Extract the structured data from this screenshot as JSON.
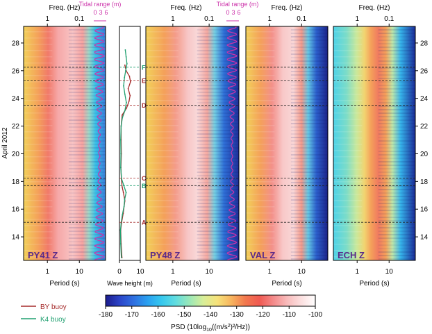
{
  "chart_data": [
    {
      "type": "heatmap",
      "panel_label": "PY41 Z",
      "xlabel": "Period (s)",
      "top_xlabel": "Freq. (Hz)",
      "x_ticks": [
        "1",
        "10"
      ],
      "top_x_ticks": [
        "1",
        "0.1"
      ],
      "overlay_title": "Tidal range (m)",
      "overlay_ticks": [
        "0",
        "3",
        "6"
      ]
    },
    {
      "type": "line",
      "xlabel": "Wave height (m)",
      "x_ticks": [
        "0",
        "10"
      ],
      "xlim": [
        0,
        10
      ],
      "ylim": [
        12.3,
        29.2
      ],
      "series": [
        {
          "name": "BY buoy",
          "color": "#a52a2a",
          "x": [
            1.2,
            0.8,
            0.6,
            1.0,
            1.8,
            2.6,
            1.9,
            1.3,
            0.9,
            0.7,
            0.9,
            0.8,
            0.8,
            1.3,
            3.4,
            4.6,
            5.1,
            4.2,
            5.3,
            4.8,
            3.2,
            2.6
          ],
          "y": [
            12.5,
            13.5,
            14.5,
            15.0,
            15.7,
            16.6,
            17.2,
            17.6,
            18.2,
            19.0,
            20.0,
            21.0,
            22.0,
            22.8,
            23.3,
            23.8,
            24.2,
            24.7,
            25.2,
            25.6,
            26.0,
            26.4
          ]
        },
        {
          "name": "K4 buoy",
          "color": "#20a070",
          "x": [
            0.9,
            0.6,
            0.5,
            0.8,
            1.4,
            2.2,
            2.5,
            3.2,
            2.1,
            1.0,
            0.6,
            0.7,
            0.6,
            0.8,
            1.4,
            2.6,
            3.3,
            2.6,
            2.0,
            2.4,
            3.0,
            3.6,
            3.2,
            2.8
          ],
          "y": [
            12.5,
            13.5,
            14.5,
            15.0,
            15.6,
            16.2,
            16.7,
            17.2,
            17.7,
            18.2,
            19.0,
            20.0,
            21.0,
            22.0,
            22.6,
            23.1,
            23.7,
            24.3,
            24.9,
            25.5,
            26.0,
            26.5,
            27.0,
            27.5
          ]
        }
      ],
      "event_markers": [
        {
          "label": "A",
          "y": 15.05,
          "color": "#a52a2a"
        },
        {
          "label": "B",
          "y": 17.7,
          "color": "#20a070"
        },
        {
          "label": "C",
          "y": 18.25,
          "color": "#a52a2a"
        },
        {
          "label": "D",
          "y": 23.5,
          "color": "#a52a2a"
        },
        {
          "label": "E",
          "y": 25.3,
          "color": "#a52a2a"
        },
        {
          "label": "F",
          "y": 26.25,
          "color": "#20a070"
        }
      ]
    },
    {
      "type": "heatmap",
      "panel_label": "PY48 Z",
      "xlabel": "Period (s)",
      "top_xlabel": "Freq. (Hz)",
      "x_ticks": [
        "1",
        "10"
      ],
      "top_x_ticks": [
        "1",
        "0.1"
      ],
      "overlay_title": "Tidal range (m)",
      "overlay_ticks": [
        "0",
        "3",
        "6"
      ]
    },
    {
      "type": "heatmap",
      "panel_label": "VAL Z",
      "xlabel": "Period (s)",
      "top_xlabel": "Freq. (Hz)",
      "x_ticks": [
        "1",
        "10"
      ],
      "top_x_ticks": [
        "1",
        "0.1"
      ]
    },
    {
      "type": "heatmap",
      "panel_label": "ECH Z",
      "xlabel": "Period (s)",
      "top_xlabel": "Freq. (Hz)",
      "x_ticks": [
        "1",
        "10"
      ],
      "top_x_ticks": [
        "1",
        "0.1"
      ]
    }
  ],
  "y_axis": {
    "label": "April 2012",
    "ticks": [
      14,
      16,
      18,
      20,
      22,
      24,
      26,
      28
    ],
    "range": [
      12.3,
      29.2
    ]
  },
  "colorbar": {
    "label_prefix": "PSD (10log",
    "label_sub": "10",
    "label_suffix": "((m/s",
    "label_sup": "2",
    "label_end": ")²/Hz))",
    "ticks": [
      "-180",
      "-170",
      "-160",
      "-150",
      "-140",
      "-130",
      "-120",
      "-110",
      "-100"
    ],
    "range": [
      -180,
      -100
    ],
    "colors": [
      "#1c1c8c",
      "#2b44c8",
      "#2f6fe0",
      "#2aa0f0",
      "#36c8ee",
      "#60dce0",
      "#9ae8b8",
      "#d8ee98",
      "#f6e27a",
      "#f7b45e",
      "#f2784e",
      "#f05a52",
      "#f48a8a",
      "#f8bcbc",
      "#fce0e0",
      "#ffffff"
    ]
  },
  "legend": [
    {
      "label": "BY buoy",
      "color": "#a52a2a"
    },
    {
      "label": "K4 buoy",
      "color": "#20a070"
    }
  ],
  "colors": {
    "tidal_curve": "#cc33aa",
    "dashed_line_red": "#a52a2a",
    "dashed_line_green": "#20a070",
    "panel_label": "#5a2a8a"
  }
}
